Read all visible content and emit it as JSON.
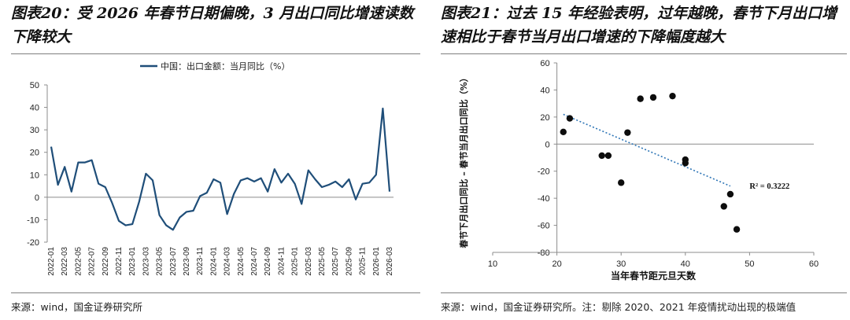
{
  "left": {
    "title": "图表20：受 2026 年春节日期偏晚，3 月出口同比增速读数下降较大",
    "source": "来源：wind，国金证券研究所"
  },
  "right": {
    "title": "图表21：过去 15 年经验表明，过年越晚，春节下月出口增速相比于春节当月出口增速的下降幅度越大",
    "source": "来源：wind，国金证券研究所。注：剔除 2020、2021 年疫情扰动出现的极端值"
  },
  "colors": {
    "line": "#1f4e79",
    "dot": "#0d0d0d",
    "trend": "#2e75b6"
  },
  "chart_data": [
    {
      "type": "line",
      "title": "",
      "legend": "中国：出口金额：当月同比（%）",
      "legend_position": "top",
      "xlabel": "",
      "ylabel": "",
      "ylim": [
        -20,
        50
      ],
      "yticks": [
        -20,
        -10,
        0,
        10,
        20,
        30,
        40,
        50
      ],
      "grid": false,
      "x": [
        "2022-01",
        "2022-02",
        "2022-03",
        "2022-04",
        "2022-05",
        "2022-06",
        "2022-07",
        "2022-08",
        "2022-09",
        "2022-10",
        "2022-11",
        "2022-12",
        "2023-01",
        "2023-02",
        "2023-03",
        "2023-04",
        "2023-05",
        "2023-06",
        "2023-07",
        "2023-08",
        "2023-09",
        "2023-10",
        "2023-11",
        "2023-12",
        "2024-01",
        "2024-02",
        "2024-03",
        "2024-04",
        "2024-05",
        "2024-06",
        "2024-07",
        "2024-08",
        "2024-09",
        "2024-10",
        "2024-11",
        "2024-12",
        "2025-01",
        "2025-02",
        "2025-03",
        "2025-04",
        "2025-05",
        "2025-06",
        "2025-07",
        "2025-08",
        "2025-09",
        "2025-10",
        "2025-11",
        "2025-12",
        "2026-01",
        "2026-02",
        "2026-03"
      ],
      "xtick_labels": [
        "2022-01",
        "2022-03",
        "2022-05",
        "2022-07",
        "2022-09",
        "2022-11",
        "2023-01",
        "2023-03",
        "2023-05",
        "2023-07",
        "2023-09",
        "2023-11",
        "2024-01",
        "2024-03",
        "2024-05",
        "2024-07",
        "2024-09",
        "2024-11",
        "2025-01",
        "2025-03",
        "2025-05",
        "2025-07",
        "2025-09",
        "2025-11",
        "2026-01",
        "2026-03"
      ],
      "series": [
        {
          "name": "中国：出口金额：当月同比（%）",
          "values": [
            22.5,
            5.5,
            13.5,
            2.5,
            15.5,
            15.5,
            16.5,
            6.0,
            4.5,
            -2.5,
            -10.5,
            -12.5,
            -12.0,
            -2.0,
            10.5,
            7.5,
            -8.0,
            -12.5,
            -14.5,
            -9.0,
            -6.5,
            -6.0,
            0.5,
            2.0,
            8.0,
            6.5,
            -7.5,
            1.5,
            7.5,
            8.5,
            7.0,
            8.5,
            2.5,
            12.5,
            6.5,
            10.5,
            6.0,
            -3.0,
            12.0,
            8.0,
            4.5,
            5.5,
            7.0,
            4.5,
            8.0,
            -1.0,
            6.0,
            6.5,
            10.0,
            39.5,
            2.5
          ]
        }
      ]
    },
    {
      "type": "scatter",
      "title": "",
      "xlabel": "当年春节距元旦天数",
      "ylabel": "春节下月出口同比 – 春节当月出口同比（%）",
      "xlim": [
        10,
        60
      ],
      "ylim": [
        -80,
        60
      ],
      "xticks": [
        10,
        20,
        30,
        40,
        50,
        60
      ],
      "yticks": [
        -80,
        -60,
        -40,
        -20,
        0,
        20,
        40,
        60
      ],
      "grid": false,
      "annotation": "R² = 0.3222",
      "points": [
        {
          "x": 21,
          "y": 9
        },
        {
          "x": 22,
          "y": 19
        },
        {
          "x": 27,
          "y": -8.5
        },
        {
          "x": 28,
          "y": -8.5
        },
        {
          "x": 30,
          "y": -28.5
        },
        {
          "x": 31,
          "y": 8.5
        },
        {
          "x": 33,
          "y": 33.5
        },
        {
          "x": 35,
          "y": 34.5
        },
        {
          "x": 38,
          "y": 35.5
        },
        {
          "x": 40,
          "y": -11.5
        },
        {
          "x": 40,
          "y": -14
        },
        {
          "x": 46,
          "y": -46
        },
        {
          "x": 47,
          "y": -37
        },
        {
          "x": 48,
          "y": -63
        }
      ],
      "trendline": {
        "x": [
          21,
          47
        ],
        "y": [
          22,
          -31
        ]
      }
    }
  ]
}
